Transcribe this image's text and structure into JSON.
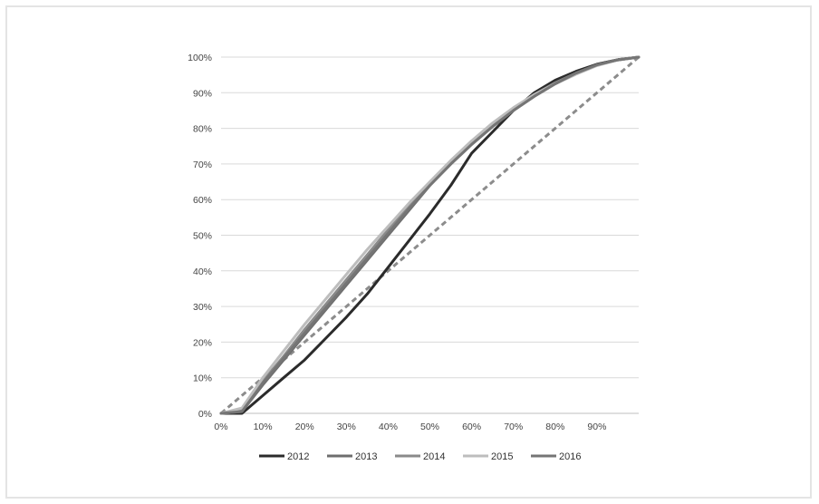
{
  "chart_data": {
    "type": "line",
    "title": "",
    "xlabel": "",
    "ylabel": "",
    "xlim": [
      0,
      100
    ],
    "ylim": [
      0,
      100
    ],
    "x_ticks": [
      "0%",
      "10%",
      "20%",
      "30%",
      "40%",
      "50%",
      "60%",
      "70%",
      "80%",
      "90%"
    ],
    "y_ticks": [
      "0%",
      "10%",
      "20%",
      "30%",
      "40%",
      "50%",
      "60%",
      "70%",
      "80%",
      "90%",
      "100%"
    ],
    "grid": "horizontal",
    "legend_position": "bottom",
    "x": [
      0,
      5,
      10,
      15,
      20,
      25,
      30,
      35,
      40,
      45,
      50,
      55,
      60,
      65,
      70,
      75,
      80,
      85,
      90,
      95,
      100
    ],
    "series": [
      {
        "name": "2012",
        "color": "#2b2b2b",
        "style": "solid",
        "values": [
          0,
          0,
          5,
          10,
          15,
          21,
          27,
          33.5,
          41,
          48.5,
          56,
          64,
          73,
          79,
          85,
          90,
          93.5,
          96,
          98,
          99.3,
          100
        ]
      },
      {
        "name": "2013",
        "color": "#6e6e6e",
        "style": "solid",
        "values": [
          0,
          0.5,
          8,
          15,
          22,
          29,
          36,
          43,
          50,
          57,
          64,
          70,
          75.5,
          80.5,
          85,
          89,
          92.5,
          95.5,
          97.8,
          99.2,
          100
        ]
      },
      {
        "name": "2014",
        "color": "#8a8a8a",
        "style": "solid",
        "values": [
          0,
          1,
          9,
          16,
          23.5,
          30.5,
          37.5,
          44.5,
          51.5,
          58,
          64.5,
          70.5,
          76,
          81,
          85.5,
          89.5,
          92.8,
          95.5,
          97.8,
          99.2,
          100
        ]
      },
      {
        "name": "2015",
        "color": "#bdbdbd",
        "style": "solid",
        "values": [
          0,
          1.5,
          10,
          17.5,
          25,
          32,
          39,
          46,
          52.5,
          59,
          65,
          71,
          76.5,
          81.5,
          85.8,
          89.5,
          92.5,
          95.2,
          97.6,
          99.2,
          100
        ]
      },
      {
        "name": "2016",
        "color": "#757575",
        "style": "solid",
        "values": [
          0,
          0.5,
          8.5,
          15.5,
          22.5,
          29.5,
          36.5,
          43.5,
          50.5,
          57.5,
          64,
          70,
          75.5,
          80.5,
          85,
          89,
          92.5,
          95.5,
          97.8,
          99.2,
          100
        ]
      },
      {
        "color": "#8c8c8c",
        "style": "dashed",
        "x": [
          0,
          100
        ],
        "values": [
          0,
          100
        ]
      }
    ]
  }
}
